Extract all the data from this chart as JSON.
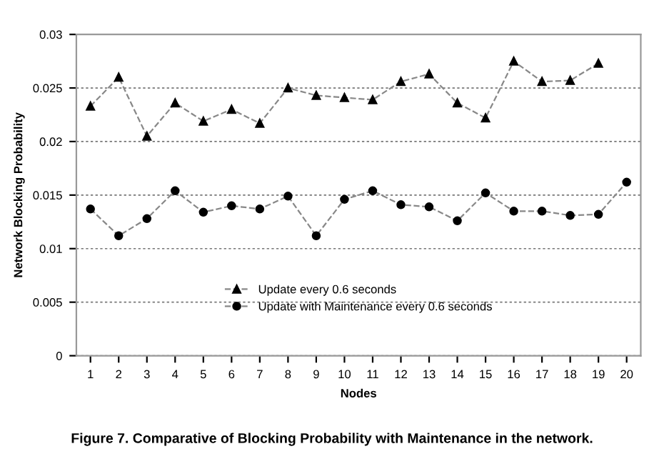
{
  "chart_data": {
    "type": "line",
    "title": "Figure 7. Comparative of Blocking Probability with Maintenance in the network.",
    "xlabel": "Nodes",
    "ylabel": "Network Blocking Probability",
    "categories": [
      "1",
      "2",
      "3",
      "4",
      "5",
      "6",
      "7",
      "8",
      "9",
      "10",
      "11",
      "12",
      "13",
      "14",
      "15",
      "16",
      "17",
      "18",
      "19",
      "20"
    ],
    "series": [
      {
        "name": "Update every 0.6 seconds",
        "color": "#000000",
        "marker": "triangle",
        "values": [
          0.0233,
          0.026,
          0.0205,
          0.0236,
          0.0219,
          0.023,
          0.0217,
          0.025,
          0.0243,
          0.0241,
          0.0239,
          0.0256,
          0.0263,
          0.0236,
          0.0222,
          0.0275,
          0.0256,
          0.0257,
          0.0273,
          null
        ]
      },
      {
        "name": "Update with Maintenance every 0.6 seconds",
        "color": "#000000",
        "marker": "circle",
        "values": [
          0.0137,
          0.0112,
          0.0128,
          0.0154,
          0.0134,
          0.014,
          0.0137,
          0.0149,
          0.0112,
          0.0146,
          0.0154,
          0.0141,
          0.0139,
          0.0126,
          0.0152,
          0.0135,
          0.0135,
          0.0131,
          0.0132,
          0.0162
        ]
      }
    ],
    "line_style": "dashed",
    "ylim": [
      0,
      0.03
    ],
    "yticks": [
      0,
      0.005,
      0.01,
      0.015,
      0.02,
      0.025,
      0.03
    ],
    "grid": "y",
    "legend": "bottom"
  }
}
